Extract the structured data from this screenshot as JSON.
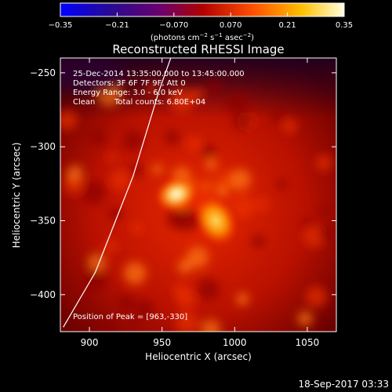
{
  "chart_data": {
    "type": "heatmap",
    "title": "Reconstructed RHESSI Image",
    "xlabel": "Heliocentric X (arcsec)",
    "ylabel": "Heliocentric Y (arcsec)",
    "xlim": [
      880,
      1070
    ],
    "ylim": [
      -425,
      -240
    ],
    "x_ticks": [
      900,
      950,
      1000,
      1050
    ],
    "x_tick_labels": [
      "900",
      "950",
      "1000",
      "1050"
    ],
    "y_ticks": [
      -250,
      -300,
      -350,
      -400
    ],
    "y_tick_labels": [
      "−250",
      "−300",
      "−350",
      "−400"
    ],
    "colorbar": {
      "range": [
        -0.35,
        0.35
      ],
      "ticks": [
        -0.35,
        -0.21,
        -0.07,
        0.07,
        0.21,
        0.35
      ],
      "tick_labels": [
        "−0.35",
        "−0.21",
        "−0.070",
        "0.070",
        "0.21",
        "0.35"
      ],
      "unit_prefix": "(photons cm",
      "unit_sup1": "−2",
      "unit_mid1": " s",
      "unit_sup2": "−1",
      "unit_mid2": " asec",
      "unit_sup3": "−2",
      "unit_suffix": ")"
    },
    "annotations": {
      "time_range": "25-Dec-2014 13:35:00.000 to 13:45:00.000",
      "detectors": "Detectors: 3F 6F 7F 9F, Att 0",
      "energy": "Energy Range: 3.0 - 6.0 keV",
      "clean_label": "Clean",
      "total_counts": "Total counts: 6.80E+04",
      "peak": "Position of Peak = [963,-330]"
    },
    "sources": [
      {
        "x": 960,
        "y": -332,
        "intensity": 0.35
      },
      {
        "x": 987,
        "y": -350,
        "intensity": 0.3
      }
    ],
    "limb_line": [
      [
        882,
        -422
      ],
      [
        904,
        -385
      ],
      [
        930,
        -320
      ],
      [
        948,
        -262
      ],
      [
        956,
        -240
      ]
    ],
    "footer": "18-Sep-2017 03:33"
  }
}
